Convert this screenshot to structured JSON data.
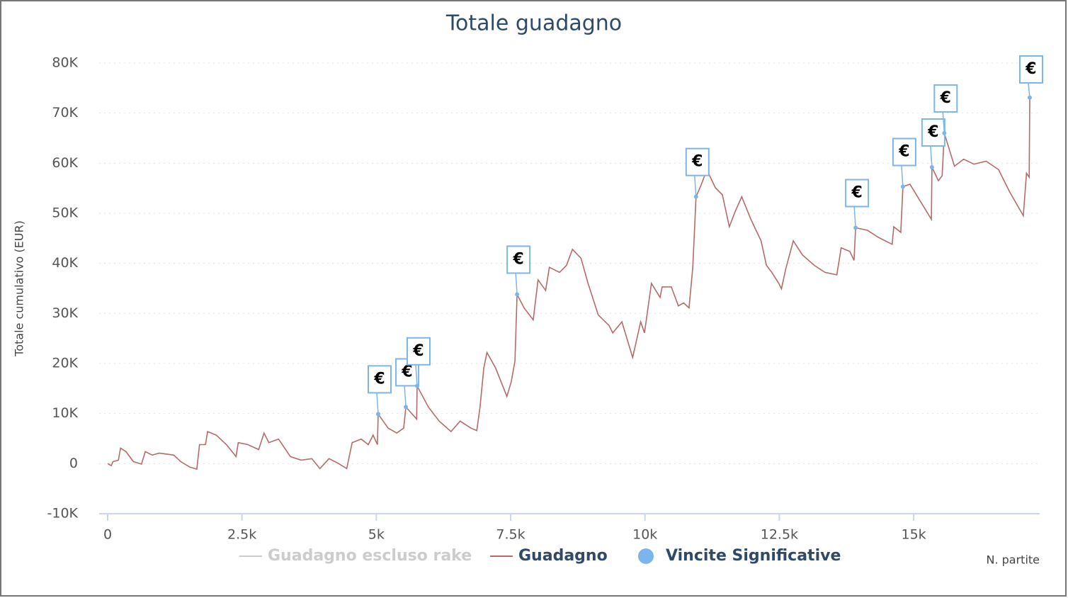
{
  "chart_data": {
    "type": "line",
    "title": "Totale guadagno",
    "y_label": "Totale cumulativo (EUR)",
    "x_label": "N. partite",
    "xlim": [
      -158,
      17345
    ],
    "ylim": [
      -10000,
      80000
    ],
    "xticks": [
      0,
      {
        "value": 2500,
        "label": "2.5k"
      },
      {
        "value": 5000,
        "label": "5k"
      },
      {
        "value": 7500,
        "label": "7.5k"
      },
      {
        "value": 10000,
        "label": "10k"
      },
      {
        "value": 12500,
        "label": "12.5k"
      },
      {
        "value": 15000,
        "label": "15k"
      }
    ],
    "yticks": [
      {
        "value": -10000,
        "label": "-10K"
      },
      0,
      {
        "value": 10000,
        "label": "10K"
      },
      {
        "value": 20000,
        "label": "20K"
      },
      {
        "value": 30000,
        "label": "30K"
      },
      {
        "value": 40000,
        "label": "40K"
      },
      {
        "value": 50000,
        "label": "50K"
      },
      {
        "value": 60000,
        "label": "60K"
      },
      {
        "value": 70000,
        "label": "70K"
      },
      {
        "value": 80000,
        "label": "80K"
      }
    ],
    "grid": true,
    "legend": "bottom",
    "series": [
      {
        "name": "Guadagno escluso rake",
        "color": "#cccccc",
        "visible": false
      },
      {
        "name": "Guadagno",
        "color": "#b86a6a",
        "type": "line",
        "x": [
          0,
          66,
          100,
          200,
          240,
          340,
          480,
          630,
          700,
          830,
          960,
          1230,
          1360,
          1530,
          1660,
          1710,
          1820,
          1860,
          2020,
          2210,
          2390,
          2430,
          2610,
          2810,
          2910,
          3000,
          3180,
          3400,
          3600,
          3800,
          3950,
          4120,
          4300,
          4450,
          4550,
          4720,
          4850,
          4940,
          5020,
          5035,
          5220,
          5380,
          5510,
          5550,
          5750,
          5760,
          5970,
          6170,
          6390,
          6560,
          6760,
          6870,
          6930,
          7000,
          7060,
          7220,
          7430,
          7510,
          7580,
          7620,
          7750,
          7920,
          8010,
          8150,
          8220,
          8410,
          8540,
          8650,
          8810,
          8940,
          9130,
          9330,
          9400,
          9570,
          9770,
          9920,
          9990,
          10120,
          10280,
          10320,
          10490,
          10620,
          10720,
          10820,
          10890,
          10950,
          11040,
          11150,
          11310,
          11440,
          11570,
          11680,
          11800,
          11970,
          12160,
          12260,
          12360,
          12490,
          12540,
          12620,
          12760,
          12930,
          13150,
          13350,
          13570,
          13650,
          13810,
          13890,
          13920,
          14140,
          14340,
          14600,
          14630,
          14760,
          14800,
          14930,
          15130,
          15330,
          15340,
          15460,
          15530,
          15570,
          15760,
          15930,
          16120,
          16350,
          16580,
          16780,
          17040,
          17100,
          17150,
          17160
        ],
        "values": [
          0,
          -400,
          400,
          700,
          3100,
          2400,
          400,
          -100,
          2400,
          1700,
          2100,
          1700,
          400,
          -700,
          -1100,
          3800,
          3800,
          6400,
          5700,
          3800,
          1400,
          4200,
          3800,
          2800,
          6100,
          4200,
          4900,
          1400,
          700,
          1000,
          -1000,
          1000,
          0,
          -1000,
          4200,
          4900,
          3800,
          5700,
          3800,
          9900,
          7100,
          6100,
          7100,
          11300,
          8900,
          15500,
          11300,
          8500,
          6400,
          8500,
          7100,
          6600,
          11300,
          19100,
          22200,
          19100,
          13400,
          16300,
          20500,
          33800,
          31100,
          28700,
          36700,
          34600,
          39200,
          38200,
          39600,
          42800,
          41000,
          36000,
          29700,
          27600,
          26100,
          28300,
          21200,
          28300,
          26100,
          36000,
          33200,
          35300,
          35300,
          31500,
          32100,
          31100,
          39200,
          53300,
          55500,
          58700,
          55100,
          53700,
          47300,
          50400,
          53300,
          48800,
          44500,
          39600,
          38200,
          36000,
          34900,
          38900,
          44500,
          41700,
          39600,
          38200,
          37700,
          43100,
          42400,
          40600,
          47100,
          46600,
          45200,
          43800,
          47300,
          46200,
          55300,
          55800,
          52300,
          48800,
          59200,
          56500,
          57500,
          66000,
          59400,
          60800,
          59800,
          60400,
          58700,
          54400,
          49500,
          58000,
          57200,
          73100
        ]
      },
      {
        "name": "Vincite Significative",
        "color": "#7cb5ec",
        "type": "scatter",
        "x": [
          5035,
          5550,
          5760,
          7620,
          10950,
          13920,
          14800,
          15340,
          15570,
          17160
        ],
        "values": [
          9900,
          11300,
          15500,
          33800,
          53300,
          47100,
          55300,
          59200,
          66000,
          73100
        ],
        "labels": [
          "€",
          "€",
          "€",
          "€",
          "€",
          "€",
          "€",
          "€",
          "€",
          "€"
        ]
      }
    ]
  }
}
